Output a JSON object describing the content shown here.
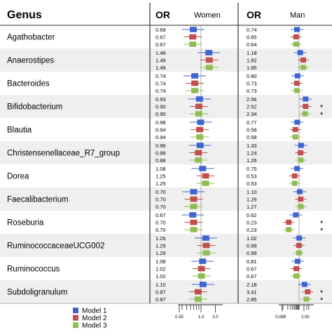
{
  "header": {
    "genus": "Genus",
    "or_women": "OR",
    "women": "Women",
    "or_man": "OR",
    "man": "Man"
  },
  "legend": [
    {
      "label": "Model 1",
      "color": "#3f64d0"
    },
    {
      "label": "Model 2",
      "color": "#c0504d"
    },
    {
      "label": "Model 3",
      "color": "#8fbd52"
    }
  ],
  "chart_data": [
    {
      "type": "forest",
      "panel": "Women",
      "x_tick_labels": [
        "0.35",
        "1.0",
        "2.0"
      ],
      "x_scale": "log",
      "reference_line": 1.0,
      "categories": [
        "Agathobacter",
        "Anaerostipes",
        "Bacteroides",
        "Bifidobacterium",
        "Blautia",
        "Christensenellaceae_R7_group",
        "Dorea",
        "Faecalibacterium",
        "Roseburia",
        "RuminococcaceaeUCG002",
        "Ruminococcus",
        "Subdoligranulum"
      ],
      "series": [
        {
          "name": "Model 1",
          "values": [
            "0.69",
            "1.46",
            "0.74",
            "0.93",
            "0.98",
            "0.96",
            "1.08",
            "0.70",
            "0.67",
            "1.26",
            "1.08",
            "1.10"
          ]
        },
        {
          "name": "Model 2",
          "values": [
            "0.67",
            "1.49",
            "0.74",
            "0.90",
            "0.94",
            "0.88",
            "1.25",
            "0.70",
            "0.70",
            "1.29",
            "1.02",
            "0.87"
          ]
        },
        {
          "name": "Model 3",
          "values": [
            "0.67",
            "1.49",
            "0.74",
            "0.90",
            "0.94",
            "0.88",
            "1.25",
            "0.70",
            "0.70",
            "1.29",
            "1.02",
            "0.87"
          ]
        }
      ],
      "significant": []
    },
    {
      "type": "forest",
      "panel": "Man",
      "x_tick_labels": [
        "0.088",
        "2.00"
      ],
      "x_scale": "log",
      "reference_line": 1.0,
      "categories": [
        "Agathobacter",
        "Anaerostipes",
        "Bacteroides",
        "Bifidobacterium",
        "Blautia",
        "Christensenellaceae_R7_group",
        "Dorea",
        "Faecalibacterium",
        "Roseburia",
        "RuminococcaceaeUCG002",
        "Ruminococcus",
        "Subdoligranulum"
      ],
      "series": [
        {
          "name": "Model 1",
          "values": [
            "0.74",
            "1.18",
            "0.80",
            "2.56",
            "0.77",
            "1.33",
            "0.75",
            "1.10",
            "0.62",
            "1.02",
            "0.81",
            "2.18"
          ]
        },
        {
          "name": "Model 2",
          "values": [
            "0.65",
            "1.82",
            "0.73",
            "2.52",
            "0.58",
            "1.24",
            "0.53",
            "1.26",
            "0.23",
            "0.99",
            "0.67",
            "3.41"
          ]
        },
        {
          "name": "Model 3",
          "values": [
            "0.64",
            "1.85",
            "0.73",
            "2.34",
            "0.58",
            "1.26",
            "0.53",
            "1.27",
            "0.23",
            "0.99",
            "0.67",
            "2.85"
          ]
        }
      ],
      "significant": [
        {
          "row": 3,
          "model": 1,
          "mark": "*"
        },
        {
          "row": 3,
          "model": 2,
          "mark": "*"
        },
        {
          "row": 8,
          "model": 1,
          "mark": "*"
        },
        {
          "row": 8,
          "model": 2,
          "mark": "*"
        },
        {
          "row": 11,
          "model": 1,
          "mark": "*"
        },
        {
          "row": 11,
          "model": 2,
          "mark": "*"
        }
      ]
    }
  ]
}
